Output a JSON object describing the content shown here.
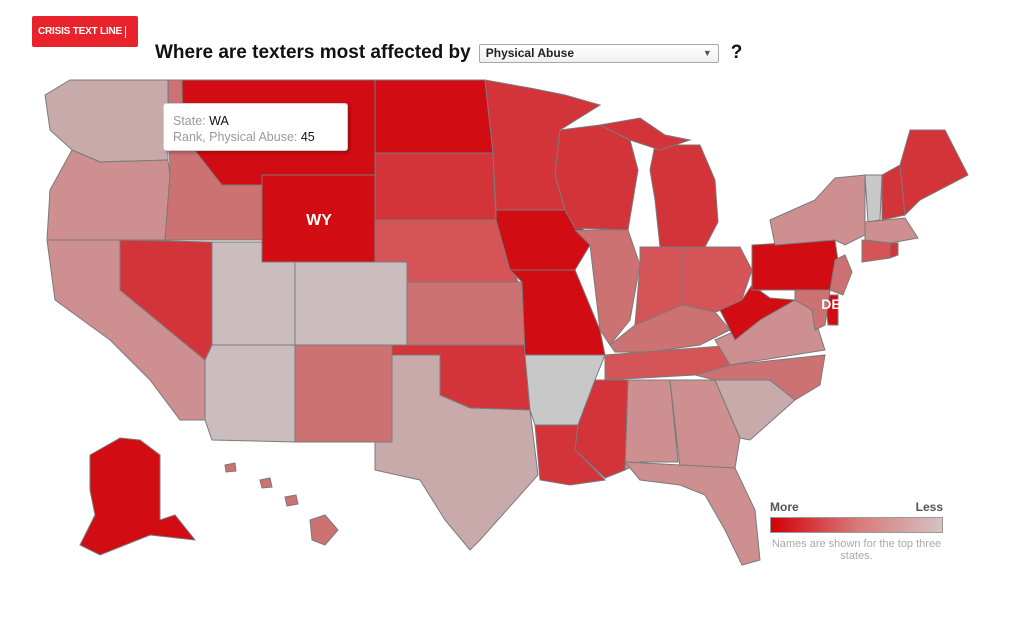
{
  "logo": {
    "text": "CRISIS TEXT LINE"
  },
  "header": {
    "question_text": "Where are texters most affected by",
    "question_mark": "?",
    "dropdown": {
      "selected": "Physical Abuse"
    }
  },
  "tooltip": {
    "state_label": "State:",
    "state_value": "WA",
    "rank_label": "Rank, Physical Abuse:",
    "rank_value": "45"
  },
  "map_labels": {
    "wy": "WY",
    "de": "DE"
  },
  "legend": {
    "more": "More",
    "less": "Less",
    "note": "Names are shown for the top three states."
  },
  "colors": {
    "top": "#d10c12",
    "high": "#d3343a",
    "medhigh": "#d55458",
    "mid": "#cd7272",
    "medlow": "#cd8f8f",
    "low": "#c9aaaa",
    "lowest": "#cbbdbd",
    "none": "#c8c8c8",
    "brand": "#e8232b"
  }
}
